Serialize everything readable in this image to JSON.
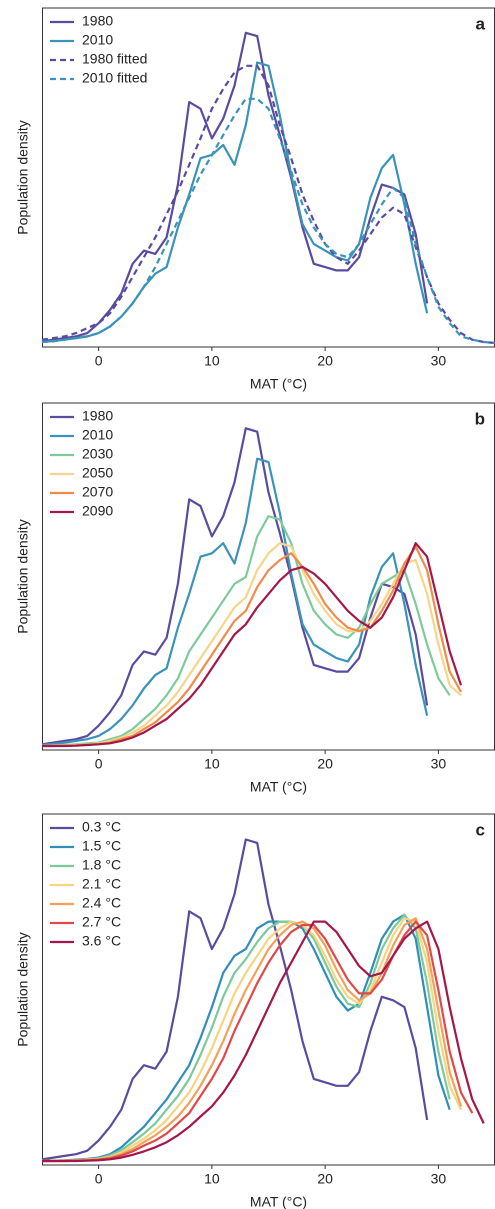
{
  "chart_data": [
    {
      "type": "line",
      "panel_label": "a",
      "xlabel": "MAT (°C)",
      "ylabel": "Population density",
      "x": [
        -5,
        -4,
        -3,
        -2,
        -1,
        0,
        1,
        2,
        3,
        4,
        5,
        6,
        7,
        8,
        9,
        10,
        11,
        12,
        13,
        14,
        15,
        16,
        17,
        18,
        19,
        20,
        21,
        22,
        23,
        24,
        25,
        26,
        27,
        28,
        29,
        30,
        31,
        32,
        33,
        34,
        35
      ],
      "xlim": [
        -5,
        35
      ],
      "xticks": [
        0,
        10,
        20,
        30
      ],
      "ylim": [
        0,
        100
      ],
      "legend": "upper left",
      "series": [
        {
          "name": "1980",
          "color": "#5b4ba0",
          "dash": false,
          "values": [
            0.5,
            1,
            1.5,
            2,
            3,
            6,
            10,
            15,
            24,
            28,
            27,
            32,
            48,
            73,
            71,
            62,
            68,
            78,
            94,
            93,
            75,
            63,
            50,
            35,
            24,
            23,
            22,
            22,
            26,
            38,
            48,
            47,
            45,
            33,
            12,
            null,
            null,
            null,
            null,
            null,
            null
          ]
        },
        {
          "name": "2010",
          "color": "#3a93b8",
          "dash": false,
          "values": [
            0.3,
            0.6,
            1,
            1.5,
            2,
            3,
            5,
            8,
            12,
            17,
            21,
            23,
            35,
            45,
            56,
            57,
            60,
            54,
            66,
            85,
            84,
            69,
            51,
            36,
            30,
            28,
            26,
            25,
            30,
            44,
            53,
            57,
            42,
            24,
            9,
            null,
            null,
            null,
            null,
            null,
            null
          ]
        },
        {
          "name": "1980 fitted",
          "color": "#5b4ba0",
          "dash": true,
          "values": [
            1,
            1.5,
            2,
            3,
            4.5,
            6,
            9,
            14,
            20,
            26,
            32,
            39,
            46,
            54,
            62,
            71,
            77,
            82,
            84,
            84,
            78,
            66,
            56,
            45,
            37,
            30,
            26,
            24,
            28,
            33,
            38,
            41,
            39,
            29,
            20,
            12,
            7,
            3,
            1,
            0.3,
            0
          ]
        },
        {
          "name": "2010 fitted",
          "color": "#3a93b8",
          "dash": true,
          "values": [
            0.3,
            0.5,
            1,
            1.5,
            2,
            3,
            5,
            8,
            12,
            17,
            23,
            30,
            37,
            44,
            51,
            57,
            63,
            69,
            74,
            74,
            71,
            62,
            52,
            42,
            35,
            30,
            27,
            26,
            30,
            36,
            42,
            47,
            44,
            30,
            20,
            11,
            6,
            2,
            1,
            0.3,
            0
          ]
        }
      ]
    },
    {
      "type": "line",
      "panel_label": "b",
      "xlabel": "MAT (°C)",
      "ylabel": "Population density",
      "x": [
        -5,
        -4,
        -3,
        -2,
        -1,
        0,
        1,
        2,
        3,
        4,
        5,
        6,
        7,
        8,
        9,
        10,
        11,
        12,
        13,
        14,
        15,
        16,
        17,
        18,
        19,
        20,
        21,
        22,
        23,
        24,
        25,
        26,
        27,
        28,
        29,
        30,
        31,
        32,
        33,
        34,
        35
      ],
      "xlim": [
        -5,
        35
      ],
      "xticks": [
        0,
        10,
        20,
        30
      ],
      "ylim": [
        0,
        100
      ],
      "legend": "upper left",
      "series": [
        {
          "name": "1980",
          "color": "#5b4ba0",
          "dash": false,
          "values": [
            0.5,
            1,
            1.5,
            2,
            3,
            6,
            10,
            15,
            24,
            28,
            27,
            32,
            48,
            73,
            71,
            62,
            68,
            78,
            94,
            93,
            75,
            63,
            50,
            35,
            24,
            23,
            22,
            22,
            26,
            38,
            48,
            47,
            45,
            33,
            12,
            null,
            null,
            null,
            null,
            null,
            null
          ]
        },
        {
          "name": "2010",
          "color": "#3a93b8",
          "dash": false,
          "values": [
            0.3,
            0.6,
            1,
            1.5,
            2,
            3,
            5,
            8,
            12,
            17,
            21,
            23,
            35,
            45,
            56,
            57,
            60,
            54,
            66,
            85,
            84,
            69,
            51,
            36,
            30,
            28,
            26,
            25,
            30,
            44,
            53,
            57,
            42,
            24,
            9,
            null,
            null,
            null,
            null,
            null,
            null
          ]
        },
        {
          "name": "2030",
          "color": "#7ecb9a",
          "dash": false,
          "values": [
            0,
            0.2,
            0.3,
            0.5,
            0.8,
            1,
            2,
            3,
            5,
            8,
            11,
            15,
            20,
            28,
            33,
            38,
            43,
            48,
            50,
            62,
            68,
            67,
            60,
            48,
            40,
            36,
            33,
            32,
            35,
            42,
            48,
            50,
            52,
            42,
            30,
            20,
            15,
            null,
            null,
            null,
            null
          ]
        },
        {
          "name": "2050",
          "color": "#f6d58a",
          "dash": false,
          "values": [
            0,
            0.1,
            0.2,
            0.3,
            0.5,
            0.8,
            1.5,
            2.5,
            4,
            6,
            9,
            12,
            16,
            21,
            26,
            31,
            36,
            41,
            44,
            52,
            57,
            60,
            59,
            52,
            45,
            40,
            36,
            34,
            34,
            37,
            42,
            48,
            54,
            55,
            45,
            30,
            18,
            15,
            null,
            null,
            null
          ]
        },
        {
          "name": "2070",
          "color": "#f18a4a",
          "dash": false,
          "values": [
            0,
            0,
            0.1,
            0.2,
            0.4,
            0.6,
            1,
            2,
            3,
            5,
            7,
            10,
            13,
            17,
            22,
            27,
            32,
            37,
            40,
            47,
            52,
            55,
            57,
            53,
            48,
            42,
            38,
            35,
            34,
            35,
            40,
            46,
            54,
            59,
            52,
            36,
            22,
            16,
            null,
            null,
            null
          ]
        },
        {
          "name": "2090",
          "color": "#a3174a",
          "dash": false,
          "values": [
            0,
            0,
            0,
            0.1,
            0.3,
            0.5,
            0.8,
            1.5,
            2.5,
            4,
            6,
            8,
            11,
            14,
            18,
            23,
            28,
            33,
            36,
            41,
            45,
            49,
            52,
            53,
            51,
            48,
            44,
            40,
            37,
            35,
            38,
            44,
            52,
            60,
            56,
            42,
            28,
            18,
            null,
            null,
            null
          ]
        }
      ]
    },
    {
      "type": "line",
      "panel_label": "c",
      "xlabel": "MAT (°C)",
      "ylabel": "Population density",
      "x": [
        -5,
        -4,
        -3,
        -2,
        -1,
        0,
        1,
        2,
        3,
        4,
        5,
        6,
        7,
        8,
        9,
        10,
        11,
        12,
        13,
        14,
        15,
        16,
        17,
        18,
        19,
        20,
        21,
        22,
        23,
        24,
        25,
        26,
        27,
        28,
        29,
        30,
        31,
        32,
        33,
        34,
        35
      ],
      "xlim": [
        -5,
        35
      ],
      "xticks": [
        0,
        10,
        20,
        30
      ],
      "ylim": [
        0,
        100
      ],
      "legend": "upper left",
      "series": [
        {
          "name": "0.3 °C",
          "color": "#5b4ba0",
          "dash": false,
          "values": [
            0.5,
            1,
            1.5,
            2,
            3,
            6,
            10,
            15,
            24,
            28,
            27,
            32,
            48,
            73,
            71,
            62,
            68,
            78,
            94,
            93,
            75,
            63,
            50,
            35,
            24,
            23,
            22,
            22,
            26,
            38,
            48,
            47,
            45,
            33,
            12,
            null,
            null,
            null,
            null,
            null,
            null
          ]
        },
        {
          "name": "1.5 °C",
          "color": "#2f8fb8",
          "dash": false,
          "values": [
            0,
            0.1,
            0.2,
            0.4,
            0.6,
            1,
            2,
            4,
            7,
            10,
            14,
            18,
            23,
            28,
            36,
            45,
            55,
            60,
            62,
            68,
            70,
            70,
            70,
            68,
            62,
            55,
            48,
            44,
            46,
            55,
            65,
            70,
            72,
            65,
            45,
            25,
            15,
            null,
            null,
            null,
            null
          ]
        },
        {
          "name": "1.8 °C",
          "color": "#7cc99b",
          "dash": false,
          "values": [
            0,
            0.1,
            0.2,
            0.3,
            0.5,
            0.8,
            1.6,
            3.2,
            5.5,
            8,
            11,
            15,
            19,
            24,
            31,
            39,
            48,
            55,
            59,
            64,
            68,
            70,
            70,
            69,
            65,
            58,
            51,
            46,
            45,
            52,
            62,
            68,
            72,
            68,
            52,
            32,
            18,
            null,
            null,
            null,
            null
          ]
        },
        {
          "name": "2.1 °C",
          "color": "#f7d47e",
          "dash": false,
          "values": [
            0,
            0,
            0.1,
            0.2,
            0.4,
            0.6,
            1.2,
            2.5,
            4.5,
            6.5,
            9,
            12,
            16,
            20,
            26,
            33,
            41,
            49,
            55,
            60,
            65,
            68,
            70,
            69,
            66,
            60,
            53,
            48,
            46,
            50,
            58,
            66,
            71,
            70,
            58,
            38,
            22,
            15,
            null,
            null,
            null
          ]
        },
        {
          "name": "2.4 °C",
          "color": "#f4a05a",
          "dash": false,
          "values": [
            0,
            0,
            0.1,
            0.2,
            0.3,
            0.5,
            1,
            2,
            3.5,
            5.5,
            7.5,
            10,
            13,
            17,
            22,
            28,
            35,
            43,
            50,
            56,
            62,
            66,
            69,
            70,
            68,
            63,
            56,
            50,
            47,
            49,
            55,
            63,
            69,
            71,
            62,
            44,
            26,
            16,
            null,
            null,
            null
          ]
        },
        {
          "name": "2.7 °C",
          "color": "#e0484a",
          "dash": false,
          "values": [
            0,
            0,
            0,
            0.1,
            0.2,
            0.4,
            0.8,
            1.6,
            2.8,
            4.5,
            6,
            8,
            11,
            14,
            19,
            24,
            30,
            38,
            45,
            52,
            58,
            63,
            67,
            69,
            69,
            65,
            59,
            53,
            49,
            49,
            53,
            60,
            66,
            70,
            66,
            50,
            32,
            20,
            14,
            null,
            null
          ]
        },
        {
          "name": "3.6 °C",
          "color": "#a3174a",
          "dash": false,
          "values": [
            0,
            0,
            0,
            0,
            0.1,
            0.2,
            0.5,
            1,
            1.8,
            2.8,
            4,
            5.5,
            7.5,
            10,
            13,
            16,
            20,
            25,
            31,
            38,
            45,
            52,
            58,
            64,
            70,
            70,
            67,
            62,
            57,
            54,
            55,
            60,
            65,
            68,
            70,
            62,
            45,
            30,
            18,
            11,
            null
          ]
        }
      ]
    }
  ]
}
